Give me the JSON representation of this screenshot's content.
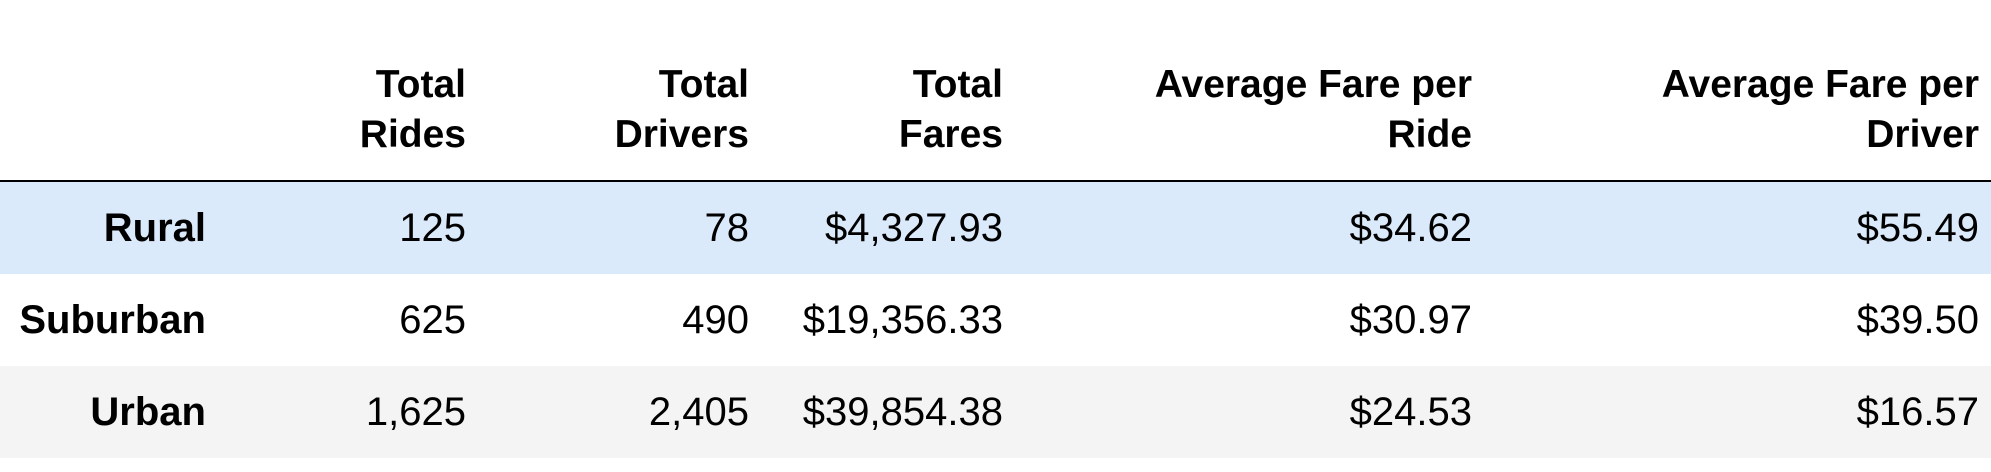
{
  "table": {
    "columns": [
      {
        "key": "index",
        "lines": [
          "",
          ""
        ]
      },
      {
        "key": "total_rides",
        "lines": [
          "Total",
          "Rides"
        ]
      },
      {
        "key": "total_drivers",
        "lines": [
          "Total",
          "Drivers"
        ]
      },
      {
        "key": "total_fares",
        "lines": [
          "Total",
          "Fares"
        ]
      },
      {
        "key": "avg_fare_ride",
        "lines": [
          "Average Fare per",
          "Ride"
        ]
      },
      {
        "key": "avg_fare_driver",
        "lines": [
          "Average Fare per",
          "Driver"
        ]
      }
    ],
    "rows": [
      {
        "label": "Rural",
        "total_rides": "125",
        "total_drivers": "78",
        "total_fares": "$4,327.93",
        "avg_fare_ride": "$34.62",
        "avg_fare_driver": "$55.49"
      },
      {
        "label": "Suburban",
        "total_rides": "625",
        "total_drivers": "490",
        "total_fares": "$19,356.33",
        "avg_fare_ride": "$30.97",
        "avg_fare_driver": "$39.50"
      },
      {
        "label": "Urban",
        "total_rides": "1,625",
        "total_drivers": "2,405",
        "total_fares": "$39,854.38",
        "avg_fare_ride": "$24.53",
        "avg_fare_driver": "$16.57"
      }
    ]
  },
  "colors": {
    "highlight_row": "#dbeafb",
    "stripe_row": "#f4f4f4",
    "header_rule": "#000000"
  }
}
